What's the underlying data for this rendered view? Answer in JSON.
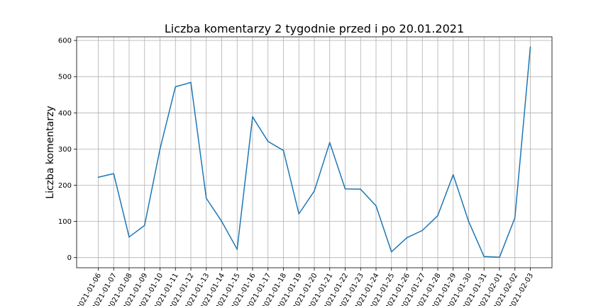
{
  "chart_data": {
    "type": "line",
    "title": "Liczba komentarzy 2 tygodnie przed i po 20.01.2021",
    "xlabel": "",
    "ylabel": "Liczba komentarzy",
    "x": [
      "2021-01-06",
      "2021-01-07",
      "2021-01-08",
      "2021-01-09",
      "2021-01-10",
      "2021-01-11",
      "2021-01-12",
      "2021-01-13",
      "2021-01-14",
      "2021-01-15",
      "2021-01-16",
      "2021-01-17",
      "2021-01-18",
      "2021-01-19",
      "2021-01-20",
      "2021-01-21",
      "2021-01-22",
      "2021-01-23",
      "2021-01-24",
      "2021-01-25",
      "2021-01-26",
      "2021-01-27",
      "2021-01-28",
      "2021-01-29",
      "2021-01-30",
      "2021-01-31",
      "2021-02-01",
      "2021-02-02",
      "2021-02-03"
    ],
    "series": [
      {
        "name": "",
        "color": "#1f77b4",
        "values": [
          222,
          232,
          57,
          89,
          300,
          472,
          484,
          164,
          100,
          23,
          389,
          321,
          296,
          121,
          184,
          318,
          190,
          189,
          143,
          16,
          55,
          75,
          116,
          229,
          100,
          3,
          1,
          110,
          582
        ]
      }
    ],
    "ylim": [
      -28,
      610
    ],
    "yticks": [
      0,
      100,
      200,
      300,
      400,
      500,
      600
    ],
    "grid": true,
    "legend": "none"
  }
}
